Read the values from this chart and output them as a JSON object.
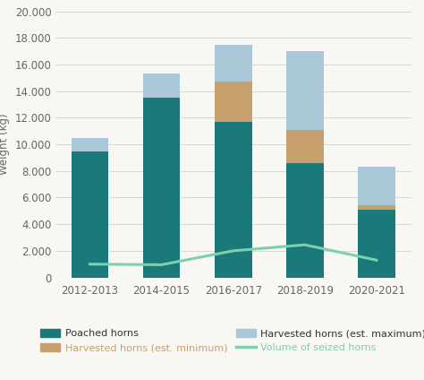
{
  "categories": [
    "2012-2013",
    "2014-2015",
    "2016-2017",
    "2018-2019",
    "2020-2021"
  ],
  "poached": [
    9500,
    13500,
    11700,
    8600,
    5100
  ],
  "harvested_min": [
    0,
    0,
    3000,
    2500,
    300
  ],
  "harvested_max": [
    950,
    1850,
    2800,
    5900,
    2900
  ],
  "seized": [
    1000,
    950,
    2000,
    2450,
    1300
  ],
  "color_poached": "#1a7a7a",
  "color_harvested_min": "#c8a06e",
  "color_harvested_max": "#aac8d8",
  "color_seized": "#7dcfb0",
  "ylabel": "Weight (kg)",
  "ylim": [
    0,
    20000
  ],
  "yticks": [
    0,
    2000,
    4000,
    6000,
    8000,
    10000,
    12000,
    14000,
    16000,
    18000,
    20000
  ],
  "legend_poached": "Poached horns",
  "legend_harvested_min": "Harvested horns (est. minimum)",
  "legend_harvested_max": "Harvested horns (est. maximum)",
  "legend_seized": "Volume of seized horns",
  "legend_color_poached": "#333333",
  "legend_color_harvested_min": "#c8a06e",
  "legend_color_harvested_max": "#333333",
  "legend_color_seized": "#7dcfb0",
  "background_color": "#f9f7f4",
  "grid_color": "#d8d8d8",
  "axis_fontsize": 8.5,
  "legend_fontsize": 8.0
}
